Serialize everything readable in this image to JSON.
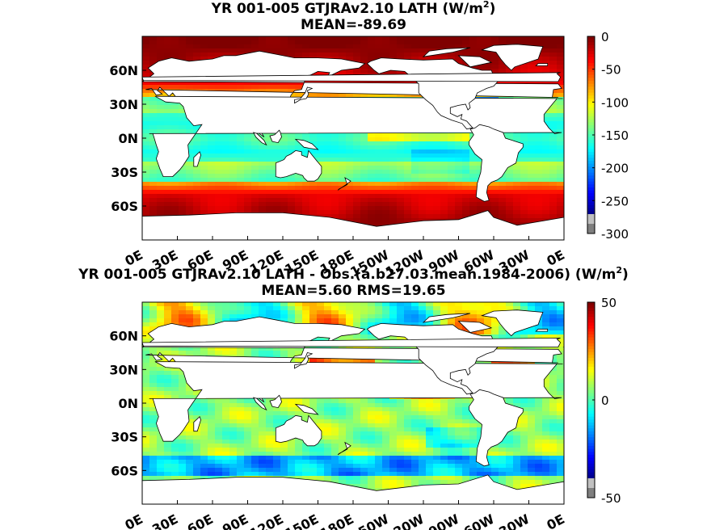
{
  "chart_data": [
    {
      "type": "heatmap",
      "title": "YR 001-005 GTJRAv2.10  LATH (W/m",
      "title_sup": "2",
      "title_end": ")",
      "subtitle": "MEAN=-89.69",
      "xticks": [
        "0E",
        "30E",
        "60E",
        "90E",
        "120E",
        "150E",
        "180E",
        "150W",
        "120W",
        "90W",
        "60W",
        "30W",
        "0E"
      ],
      "yticks": [
        "60N",
        "30N",
        "0N",
        "30S",
        "60S"
      ],
      "xlim": [
        0,
        360
      ],
      "ylim": [
        -90,
        90
      ],
      "colorbar": {
        "min": -300,
        "max": 0,
        "ticks": [
          "0",
          "-50",
          "-100",
          "-150",
          "-200",
          "-250",
          "-300"
        ]
      },
      "zonal_mean_profile": [
        {
          "lat": 80,
          "value": -5
        },
        {
          "lat": 60,
          "value": -30
        },
        {
          "lat": 45,
          "value": -60
        },
        {
          "lat": 30,
          "value": -110
        },
        {
          "lat": 15,
          "value": -140
        },
        {
          "lat": 0,
          "value": -115
        },
        {
          "lat": -15,
          "value": -145
        },
        {
          "lat": -30,
          "value": -120
        },
        {
          "lat": -45,
          "value": -70
        },
        {
          "lat": -60,
          "value": -30
        },
        {
          "lat": -70,
          "value": -10
        }
      ]
    },
    {
      "type": "heatmap",
      "title": "YR 001-005 GTJRAv2.10 LATH - Obs.(a.b27.03.mean.1984-2006) (W/m",
      "title_sup": "2",
      "title_end": ")",
      "subtitle": "MEAN=5.60 RMS=19.65",
      "xticks": [
        "0E",
        "30E",
        "60E",
        "90E",
        "120E",
        "150E",
        "180E",
        "150W",
        "120W",
        "90W",
        "60W",
        "30W",
        "0E"
      ],
      "yticks": [
        "60N",
        "30N",
        "0N",
        "30S",
        "60S"
      ],
      "xlim": [
        0,
        360
      ],
      "ylim": [
        -90,
        90
      ],
      "colorbar": {
        "min": -50,
        "max": 50,
        "ticks": [
          "50",
          "0",
          "-50"
        ]
      }
    }
  ],
  "colors": {
    "colormap": [
      "#00007f",
      "#0000ff",
      "#007fff",
      "#00ffff",
      "#7fff7f",
      "#ffff00",
      "#ff7f00",
      "#ff0000",
      "#7f0000"
    ],
    "land": "#ffffff",
    "coast": "#000000",
    "under": "#7f7f7f",
    "over": "#c0c0c0"
  }
}
